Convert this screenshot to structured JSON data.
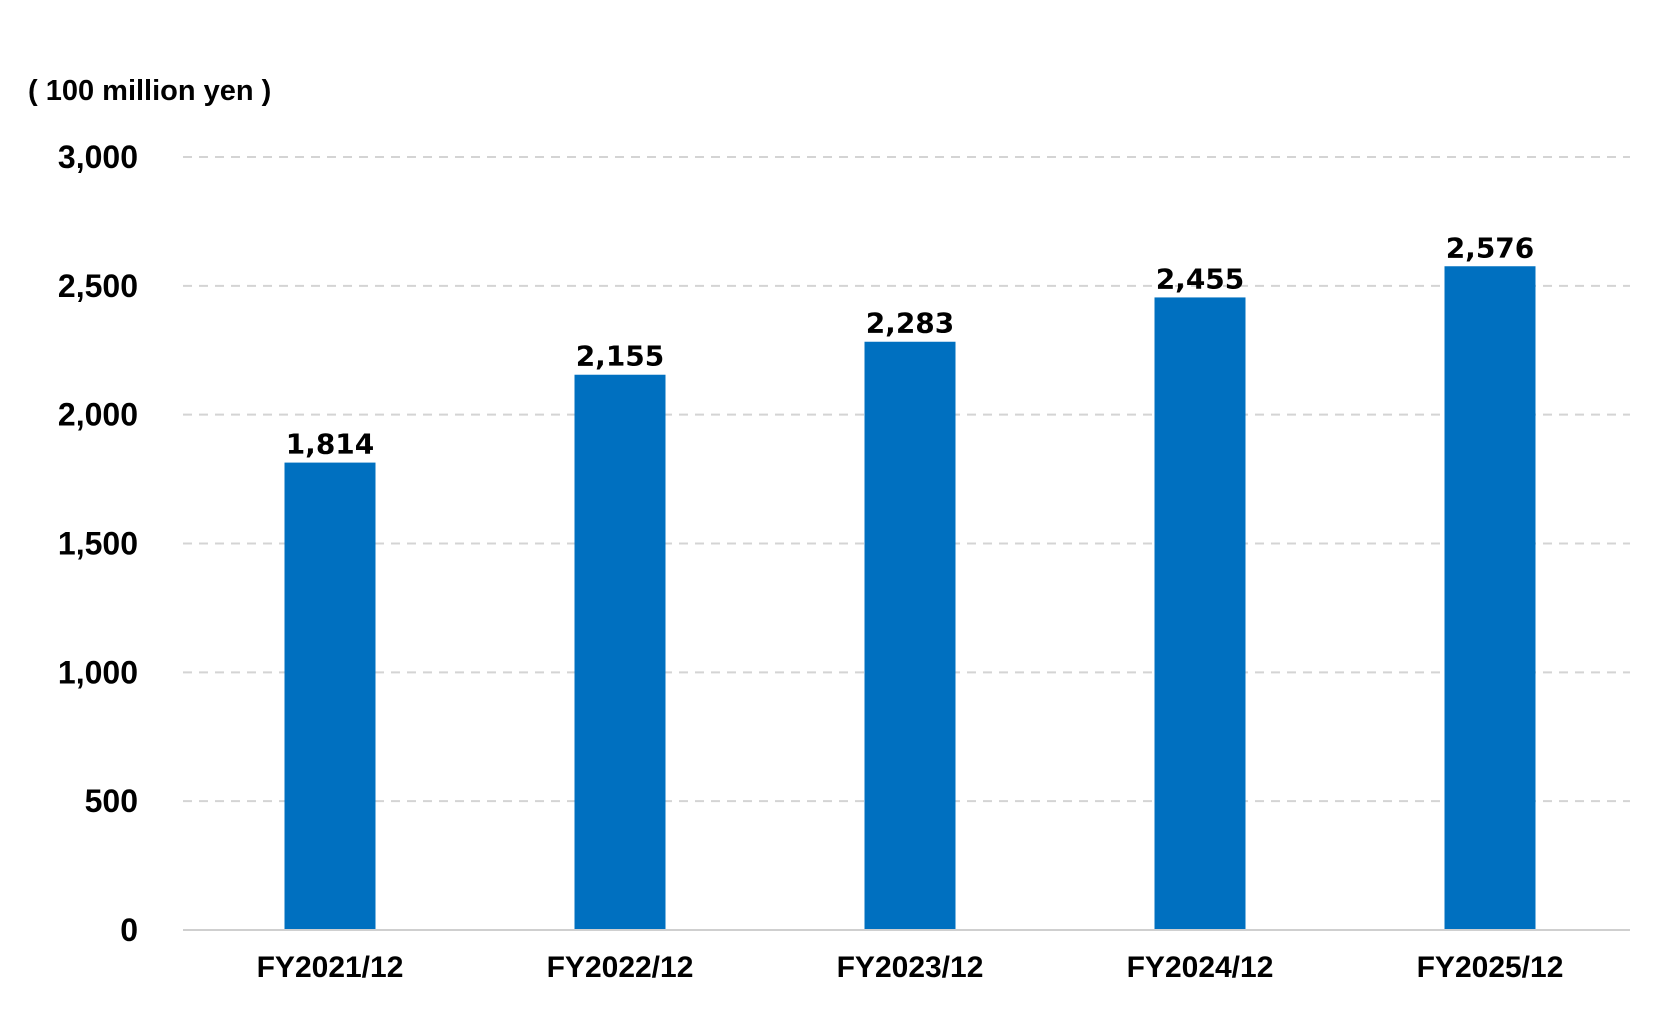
{
  "chart_data": {
    "type": "bar",
    "title": "",
    "unit_label": "( 100 million yen )",
    "xlabel": "",
    "ylabel": "",
    "categories": [
      "FY2021/12",
      "FY2022/12",
      "FY2023/12",
      "FY2024/12",
      "FY2025/12"
    ],
    "values": [
      1814,
      2155,
      2283,
      2455,
      2576
    ],
    "data_labels": [
      "1,814",
      "2,155",
      "2,283",
      "2,455",
      "2,576"
    ],
    "ylim": [
      0,
      3000
    ],
    "yticks": [
      0,
      500,
      1000,
      1500,
      2000,
      2500,
      3000
    ],
    "ytick_labels": [
      "0",
      "500",
      "1,000",
      "1,500",
      "2,000",
      "2,500",
      "3,000"
    ],
    "grid": true,
    "grid_style": "dashed",
    "legend": "none",
    "bar_color": "#0070c0"
  }
}
